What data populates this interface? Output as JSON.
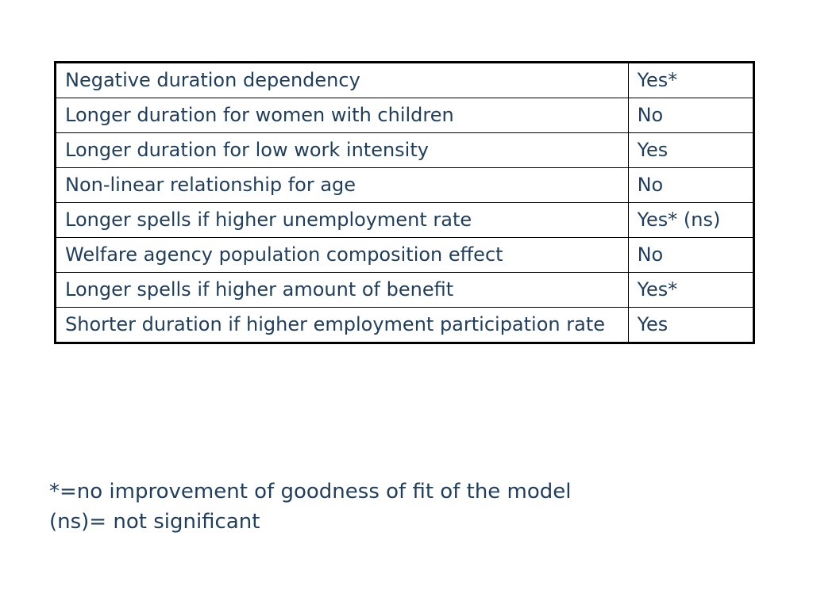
{
  "table": {
    "rows": [
      {
        "label": "Negative duration dependency",
        "value": "Yes*"
      },
      {
        "label": "Longer duration for women with children",
        "value": "No"
      },
      {
        "label": "Longer duration for low work intensity",
        "value": "Yes"
      },
      {
        "label": "Non-linear relationship for age",
        "value": "No"
      },
      {
        "label": "Longer spells if higher unemployment rate",
        "value": "Yes* (ns)"
      },
      {
        "label": "Welfare agency population composition effect",
        "value": "No"
      },
      {
        "label": "Longer spells if higher amount of benefit",
        "value": "Yes*"
      },
      {
        "label": "Shorter duration if higher employment participation rate",
        "value": "Yes"
      }
    ]
  },
  "footnotes": {
    "asterisk": "*=no improvement of goodness of fit of the model",
    "ns": "(ns)= not significant"
  },
  "colors": {
    "text": "#1f3d5c",
    "border": "#000000",
    "background": "#ffffff"
  }
}
